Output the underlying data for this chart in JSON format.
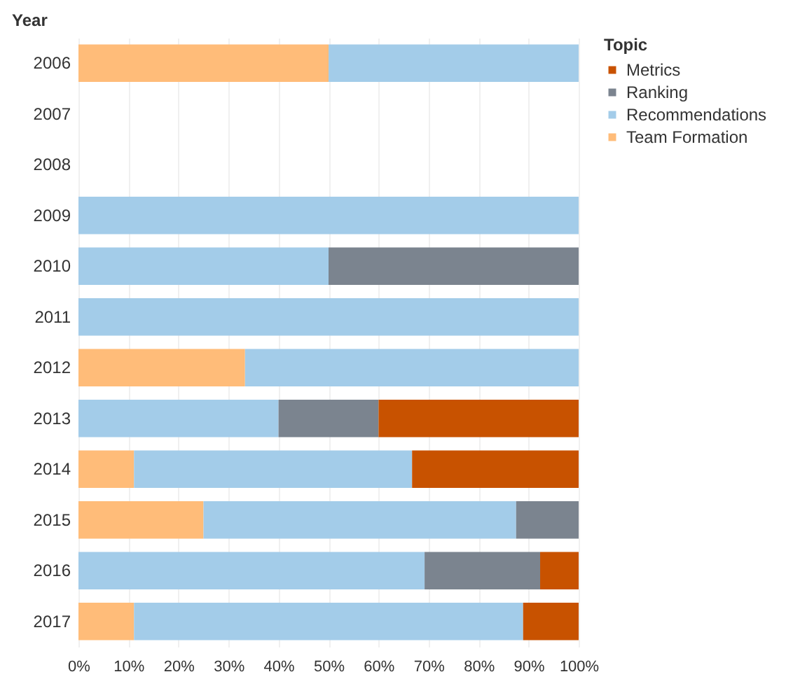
{
  "chart_data": {
    "type": "bar",
    "orientation": "horizontal",
    "stacked": true,
    "ylabel": "Year",
    "legend_title": "Topic",
    "legend": "top right",
    "grid": "x",
    "categories": [
      "2006",
      "2007",
      "2008",
      "2009",
      "2010",
      "2011",
      "2012",
      "2013",
      "2014",
      "2015",
      "2016",
      "2017"
    ],
    "xlim": [
      0,
      100
    ],
    "xticks": [
      {
        "value": 0,
        "label": "0%"
      },
      {
        "value": 10,
        "label": "10%"
      },
      {
        "value": 20,
        "label": "20%"
      },
      {
        "value": 30,
        "label": "30%"
      },
      {
        "value": 40,
        "label": "40%"
      },
      {
        "value": 50,
        "label": "50%"
      },
      {
        "value": 60,
        "label": "60%"
      },
      {
        "value": 70,
        "label": "70%"
      },
      {
        "value": 80,
        "label": "80%"
      },
      {
        "value": 90,
        "label": "90%"
      },
      {
        "value": 100,
        "label": "100%"
      }
    ],
    "series": [
      {
        "name": "Team Formation",
        "color": "#ffbc79",
        "values": [
          50,
          null,
          null,
          null,
          null,
          null,
          33.3,
          null,
          11.1,
          25,
          null,
          11.1
        ]
      },
      {
        "name": "Recommendations",
        "color": "#a3cce9",
        "values": [
          50,
          null,
          null,
          100,
          50,
          100,
          66.7,
          40,
          55.6,
          62.5,
          69.2,
          77.8
        ]
      },
      {
        "name": "Ranking",
        "color": "#7b848f",
        "values": [
          null,
          null,
          null,
          null,
          50,
          null,
          null,
          20,
          null,
          12.5,
          23.1,
          null
        ]
      },
      {
        "name": "Metrics",
        "color": "#c85200",
        "values": [
          null,
          null,
          null,
          null,
          null,
          null,
          null,
          40,
          33.3,
          null,
          7.7,
          11.1
        ]
      }
    ]
  }
}
